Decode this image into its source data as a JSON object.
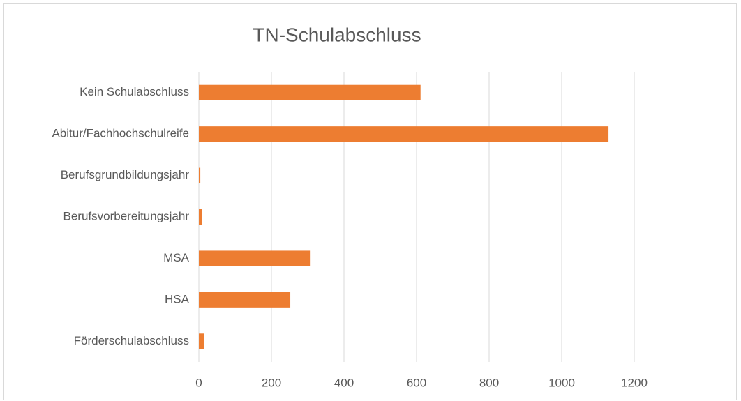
{
  "chart_data": {
    "type": "barh",
    "title": "TN-Schulabschluss",
    "categories": [
      "Kein Schulabschluss",
      "Abitur/Fachhochschulreife",
      "Berufsgrundbildungsjahr",
      "Berufsvorbereitungsjahr",
      "MSA",
      "HSA",
      "Förderschulabschluss"
    ],
    "values": [
      611,
      1129,
      4,
      8,
      308,
      252,
      15
    ],
    "color": "#ed7d31",
    "xlim": [
      0,
      1200
    ],
    "xticks": [
      0,
      200,
      400,
      600,
      800,
      1000,
      1200
    ],
    "grid": true
  }
}
